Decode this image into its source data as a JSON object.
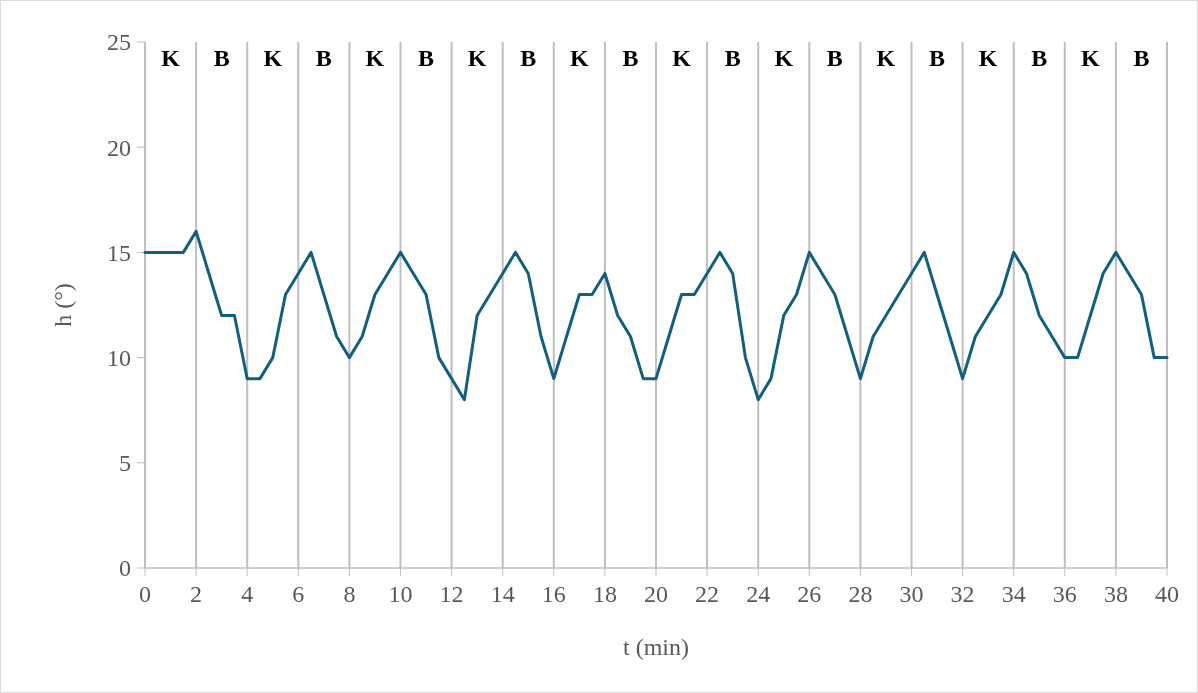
{
  "chart_data": {
    "type": "line",
    "xlabel": "t (min)",
    "ylabel": "h (°)",
    "x": [
      0,
      0.5,
      1,
      1.5,
      2,
      2.5,
      3,
      3.5,
      4,
      4.5,
      5,
      5.5,
      6,
      6.5,
      7,
      7.5,
      8,
      8.5,
      9,
      9.5,
      10,
      10.5,
      11,
      11.5,
      12,
      12.5,
      13,
      13.5,
      14,
      14.5,
      15,
      15.5,
      16,
      16.5,
      17,
      17.5,
      18,
      18.5,
      19,
      19.5,
      20,
      20.5,
      21,
      21.5,
      22,
      22.5,
      23,
      23.5,
      24,
      24.5,
      25,
      25.5,
      26,
      26.5,
      27,
      27.5,
      28,
      28.5,
      29,
      29.5,
      30,
      30.5,
      31,
      31.5,
      32,
      32.5,
      33,
      33.5,
      34,
      34.5,
      35,
      35.5,
      36,
      36.5,
      37,
      37.5,
      38,
      38.5,
      39,
      39.5,
      40
    ],
    "series": [
      {
        "color": "#145f7e",
        "values": [
          15,
          15,
          15,
          15,
          16,
          14,
          12,
          12,
          9,
          9,
          10,
          13,
          14,
          15,
          13,
          11,
          10,
          11,
          13,
          14,
          15,
          14,
          13,
          10,
          9,
          8,
          12,
          13,
          14,
          15,
          14,
          11,
          9,
          11,
          13,
          13,
          14,
          12,
          11,
          9,
          9,
          11,
          13,
          13,
          14,
          15,
          14,
          10,
          8,
          9,
          12,
          13,
          15,
          14,
          13,
          11,
          9,
          11,
          12,
          13,
          14,
          15,
          13,
          11,
          9,
          11,
          12,
          13,
          15,
          14,
          12,
          11,
          10,
          10,
          12,
          14,
          15,
          14,
          13,
          10,
          10
        ]
      }
    ],
    "xlim": [
      0,
      40
    ],
    "xticks": [
      0,
      2,
      4,
      6,
      8,
      10,
      12,
      14,
      16,
      18,
      20,
      22,
      24,
      26,
      28,
      30,
      32,
      34,
      36,
      38,
      40
    ],
    "ylim": [
      0,
      25
    ],
    "yticks": [
      0,
      5,
      10,
      15,
      20,
      25
    ],
    "grid": "x",
    "marker": "none",
    "line_style": "solid",
    "annotations": [
      "K",
      "B",
      "K",
      "B",
      "K",
      "B",
      "K",
      "B",
      "K",
      "B",
      "K",
      "B",
      "K",
      "B",
      "K",
      "B",
      "K",
      "B",
      "K",
      "B"
    ]
  }
}
